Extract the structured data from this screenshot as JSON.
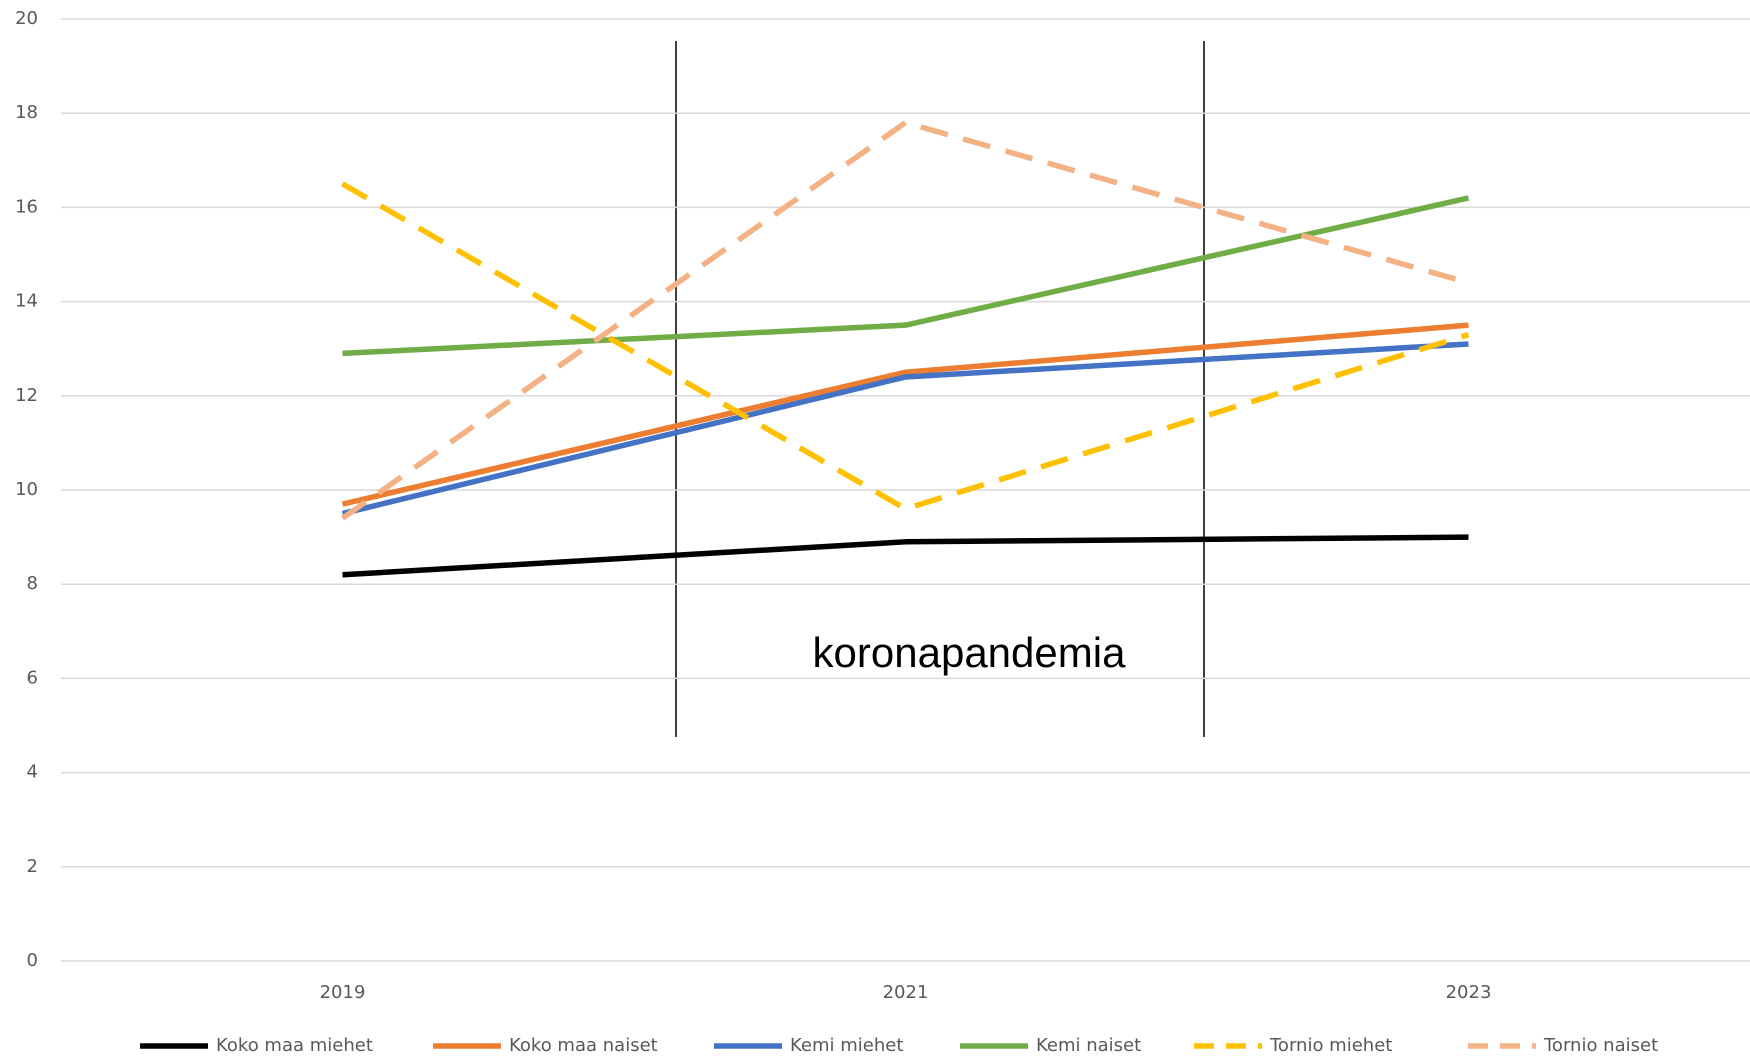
{
  "chart_data": {
    "type": "line",
    "categories": [
      "2019",
      "2021",
      "2023"
    ],
    "series": [
      {
        "name": "Koko maa miehet",
        "color": "#000000",
        "dashed": false,
        "values": [
          8.2,
          8.9,
          9.0
        ]
      },
      {
        "name": "Koko maa naiset",
        "color": "#ed7d31",
        "dashed": false,
        "values": [
          9.7,
          12.5,
          13.5
        ]
      },
      {
        "name": "Kemi miehet",
        "color": "#4472c4",
        "dashed": false,
        "values": [
          9.5,
          12.4,
          13.1
        ]
      },
      {
        "name": "Kemi naiset",
        "color": "#70ad47",
        "dashed": false,
        "values": [
          12.9,
          13.5,
          16.2
        ]
      },
      {
        "name": "Tornio miehet",
        "color": "#ffc000",
        "dashed": true,
        "values": [
          16.5,
          9.6,
          13.3
        ]
      },
      {
        "name": "Tornio naiset",
        "color": "#f4b183",
        "dashed": true,
        "values": [
          9.4,
          17.8,
          14.4
        ]
      }
    ],
    "annotation": "koronapandemia",
    "ylim": [
      0,
      20
    ],
    "yticks": [
      0,
      2,
      4,
      6,
      8,
      10,
      12,
      14,
      16,
      18,
      20
    ],
    "grid": true,
    "legend": "bottom"
  }
}
